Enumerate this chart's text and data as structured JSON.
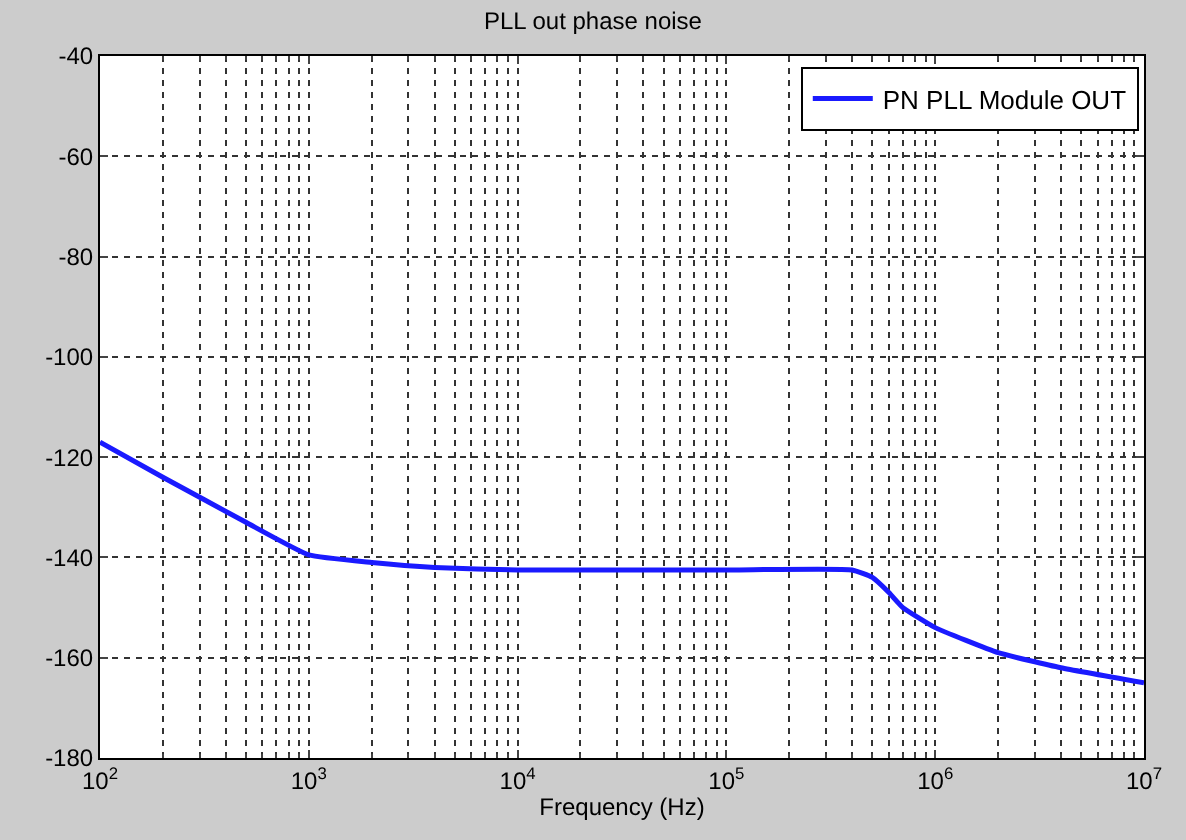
{
  "chart_data": {
    "type": "line",
    "title": "PLL out phase noise",
    "xlabel": "Frequency (Hz)",
    "x": [
      100,
      200,
      500,
      1000,
      2000,
      4000,
      10000,
      100000,
      400000,
      500000,
      600000,
      700000,
      1000000,
      2000000,
      4000000,
      10000000
    ],
    "series": [
      {
        "name": "PN PLL Module OUT",
        "color": "#1a1aff",
        "values": [
          -117,
          -124,
          -133,
          -139.5,
          -141,
          -142,
          -142.5,
          -142.5,
          -142.5,
          -144,
          -147,
          -150,
          -154,
          -159,
          -162,
          -165
        ]
      }
    ],
    "log": "x",
    "xlim": [
      100,
      10000000
    ],
    "xticks": [
      {
        "value": 100,
        "label": "10$^{2}$"
      },
      {
        "value": 1000,
        "label": "10$^{3}$"
      },
      {
        "value": 10000,
        "label": "10$^{4}$"
      },
      {
        "value": 100000,
        "label": "10$^{5}$"
      },
      {
        "value": 1000000,
        "label": "10$^{6}$"
      },
      {
        "value": 10000000,
        "label": "10$^{7}$"
      }
    ],
    "ylim": [
      -180,
      -40
    ],
    "yticks": [
      -180,
      -160,
      -140,
      -120,
      -100,
      -80,
      -60,
      -40
    ],
    "grid": true,
    "legend": "top right",
    "line_style": "solid",
    "marker": "none"
  }
}
